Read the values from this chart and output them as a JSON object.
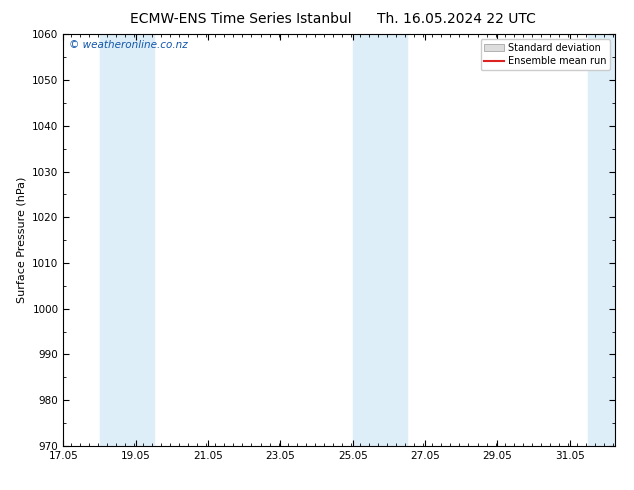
{
  "title_left": "ECMW-ENS Time Series Istanbul",
  "title_right": "Th. 16.05.2024 22 UTC",
  "ylabel": "Surface Pressure (hPa)",
  "ylim": [
    970,
    1060
  ],
  "yticks": [
    970,
    980,
    990,
    1000,
    1010,
    1020,
    1030,
    1040,
    1050,
    1060
  ],
  "xlim_start": 17.05,
  "xlim_end": 32.3,
  "xticks": [
    17.05,
    19.05,
    21.05,
    23.05,
    25.05,
    27.05,
    29.05,
    31.05
  ],
  "xticklabels": [
    "17.05",
    "19.05",
    "21.05",
    "23.05",
    "25.05",
    "27.05",
    "29.05",
    "31.05"
  ],
  "shaded_bands": [
    {
      "xmin": 18.05,
      "xmax": 19.55
    },
    {
      "xmin": 25.05,
      "xmax": 26.55
    },
    {
      "xmin": 31.55,
      "xmax": 33.0
    }
  ],
  "shade_color": "#ddeef8",
  "background_color": "#ffffff",
  "plot_bg_color": "#ffffff",
  "legend_entries": [
    "Standard deviation",
    "Ensemble mean run"
  ],
  "legend_colors": [
    "#cccccc",
    "#dd2222"
  ],
  "watermark": "© weatheronline.co.nz",
  "watermark_color": "#1155aa",
  "title_fontsize": 10,
  "axis_fontsize": 8,
  "tick_fontsize": 7.5
}
